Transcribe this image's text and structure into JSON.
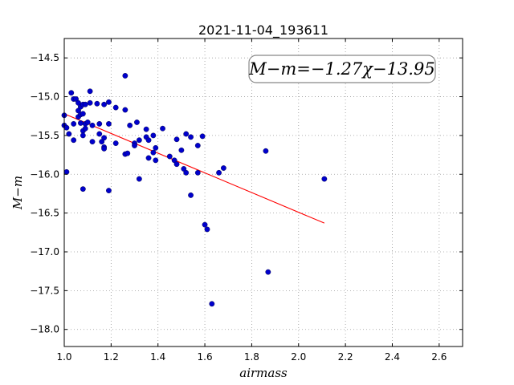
{
  "chart_data": {
    "type": "scatter",
    "title": "2021-11-04_193611",
    "xlabel": "airmass",
    "ylabel": "M−m",
    "xlim": [
      1.0,
      2.7
    ],
    "ylim": [
      -18.22,
      -14.25
    ],
    "x_ticks": [
      1.0,
      1.2,
      1.4,
      1.6,
      1.8,
      2.0,
      2.2,
      2.4,
      2.6
    ],
    "y_ticks": [
      -14.5,
      -15.0,
      -15.5,
      -16.0,
      -16.5,
      -17.0,
      -17.5,
      -18.0
    ],
    "x_tick_labels": [
      "1.0",
      "1.2",
      "1.4",
      "1.6",
      "1.8",
      "2.0",
      "2.2",
      "2.4",
      "2.6"
    ],
    "y_tick_labels": [
      "−14.5",
      "−15.0",
      "−15.5",
      "−16.0",
      "−16.5",
      "−17.0",
      "−17.5",
      "−18.0"
    ],
    "grid": true,
    "annotation": "M−m=−1.27χ−13.95",
    "fit": {
      "slope": -1.27,
      "intercept": -13.95,
      "x_range": [
        1.0,
        2.11
      ],
      "color": "#ff0000"
    },
    "point_color": "#0000cc",
    "points": [
      [
        1.0,
        -15.24
      ],
      [
        1.0,
        -15.37
      ],
      [
        1.01,
        -15.4
      ],
      [
        1.01,
        -15.97
      ],
      [
        1.02,
        -15.48
      ],
      [
        1.03,
        -14.95
      ],
      [
        1.04,
        -15.03
      ],
      [
        1.04,
        -15.35
      ],
      [
        1.04,
        -15.56
      ],
      [
        1.05,
        -15.03
      ],
      [
        1.06,
        -15.08
      ],
      [
        1.06,
        -15.18
      ],
      [
        1.06,
        -15.26
      ],
      [
        1.07,
        -15.13
      ],
      [
        1.07,
        -15.23
      ],
      [
        1.07,
        -15.34
      ],
      [
        1.08,
        -15.1
      ],
      [
        1.08,
        -15.22
      ],
      [
        1.08,
        -15.44
      ],
      [
        1.08,
        -15.5
      ],
      [
        1.08,
        -16.19
      ],
      [
        1.09,
        -15.1
      ],
      [
        1.09,
        -15.35
      ],
      [
        1.09,
        -15.41
      ],
      [
        1.1,
        -15.33
      ],
      [
        1.11,
        -14.93
      ],
      [
        1.11,
        -15.08
      ],
      [
        1.12,
        -15.58
      ],
      [
        1.12,
        -15.37
      ],
      [
        1.14,
        -15.09
      ],
      [
        1.15,
        -15.35
      ],
      [
        1.15,
        -15.48
      ],
      [
        1.16,
        -15.58
      ],
      [
        1.17,
        -15.53
      ],
      [
        1.17,
        -15.65
      ],
      [
        1.17,
        -15.67
      ],
      [
        1.17,
        -15.1
      ],
      [
        1.19,
        -15.07
      ],
      [
        1.19,
        -15.35
      ],
      [
        1.19,
        -16.21
      ],
      [
        1.22,
        -15.14
      ],
      [
        1.22,
        -15.6
      ],
      [
        1.26,
        -14.73
      ],
      [
        1.26,
        -15.17
      ],
      [
        1.26,
        -15.74
      ],
      [
        1.27,
        -15.73
      ],
      [
        1.28,
        -15.37
      ],
      [
        1.3,
        -15.6
      ],
      [
        1.3,
        -15.63
      ],
      [
        1.31,
        -15.33
      ],
      [
        1.32,
        -15.56
      ],
      [
        1.32,
        -16.06
      ],
      [
        1.35,
        -15.42
      ],
      [
        1.35,
        -15.52
      ],
      [
        1.36,
        -15.56
      ],
      [
        1.36,
        -15.79
      ],
      [
        1.38,
        -15.5
      ],
      [
        1.38,
        -15.72
      ],
      [
        1.39,
        -15.66
      ],
      [
        1.39,
        -15.82
      ],
      [
        1.42,
        -15.41
      ],
      [
        1.45,
        -15.77
      ],
      [
        1.47,
        -15.82
      ],
      [
        1.48,
        -15.55
      ],
      [
        1.48,
        -15.87
      ],
      [
        1.5,
        -15.69
      ],
      [
        1.51,
        -15.93
      ],
      [
        1.52,
        -15.98
      ],
      [
        1.52,
        -15.48
      ],
      [
        1.54,
        -15.52
      ],
      [
        1.54,
        -16.27
      ],
      [
        1.57,
        -15.63
      ],
      [
        1.57,
        -15.98
      ],
      [
        1.59,
        -15.51
      ],
      [
        1.6,
        -16.65
      ],
      [
        1.61,
        -16.71
      ],
      [
        1.63,
        -17.67
      ],
      [
        1.66,
        -15.98
      ],
      [
        1.68,
        -15.92
      ],
      [
        1.86,
        -15.7
      ],
      [
        1.87,
        -17.26
      ],
      [
        2.11,
        -16.06
      ]
    ]
  }
}
